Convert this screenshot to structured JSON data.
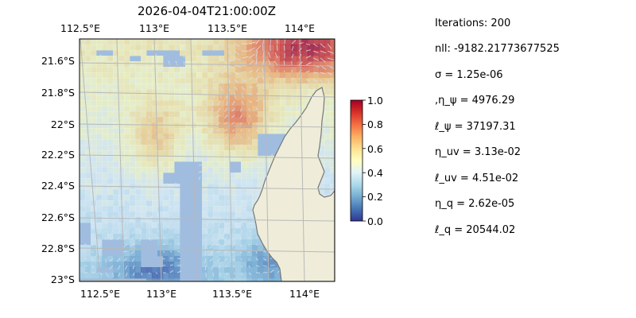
{
  "title": "2026-04-04T21:00:00Z",
  "map": {
    "lon_ticks": [
      "112.5°E",
      "113°E",
      "113.5°E",
      "114°E"
    ],
    "lat_ticks": [
      "21.6°S",
      "21.8°S",
      "22°S",
      "22.2°S",
      "22.4°S",
      "22.6°S",
      "22.8°S",
      "23°S"
    ],
    "colors": {
      "land": "#efedd9",
      "ocean_masked": "#a0bde0",
      "coast": "#777777",
      "grid": "#b8b8b8"
    }
  },
  "colorbar": {
    "ticks": [
      "0.0",
      "0.2",
      "0.4",
      "0.6",
      "0.8",
      "1.0"
    ],
    "colormap": "RdYlBu_r",
    "colors": [
      "#313695",
      "#4575b4",
      "#74add1",
      "#abd9e9",
      "#e0f3f8",
      "#ffffbf",
      "#fee090",
      "#fdae61",
      "#f46d43",
      "#d73027",
      "#a50026"
    ]
  },
  "params": [
    "Iterations: 200",
    "nll: -9182.21773677525",
    "σ = 1.25e-06",
    ",η_ψ = 4976.29",
    "ℓ_ψ = 37197.31",
    "η_uv = 3.13e-02",
    "ℓ_uv = 4.51e-02",
    "η_q = 2.62e-05",
    "ℓ_q = 20544.02"
  ]
}
